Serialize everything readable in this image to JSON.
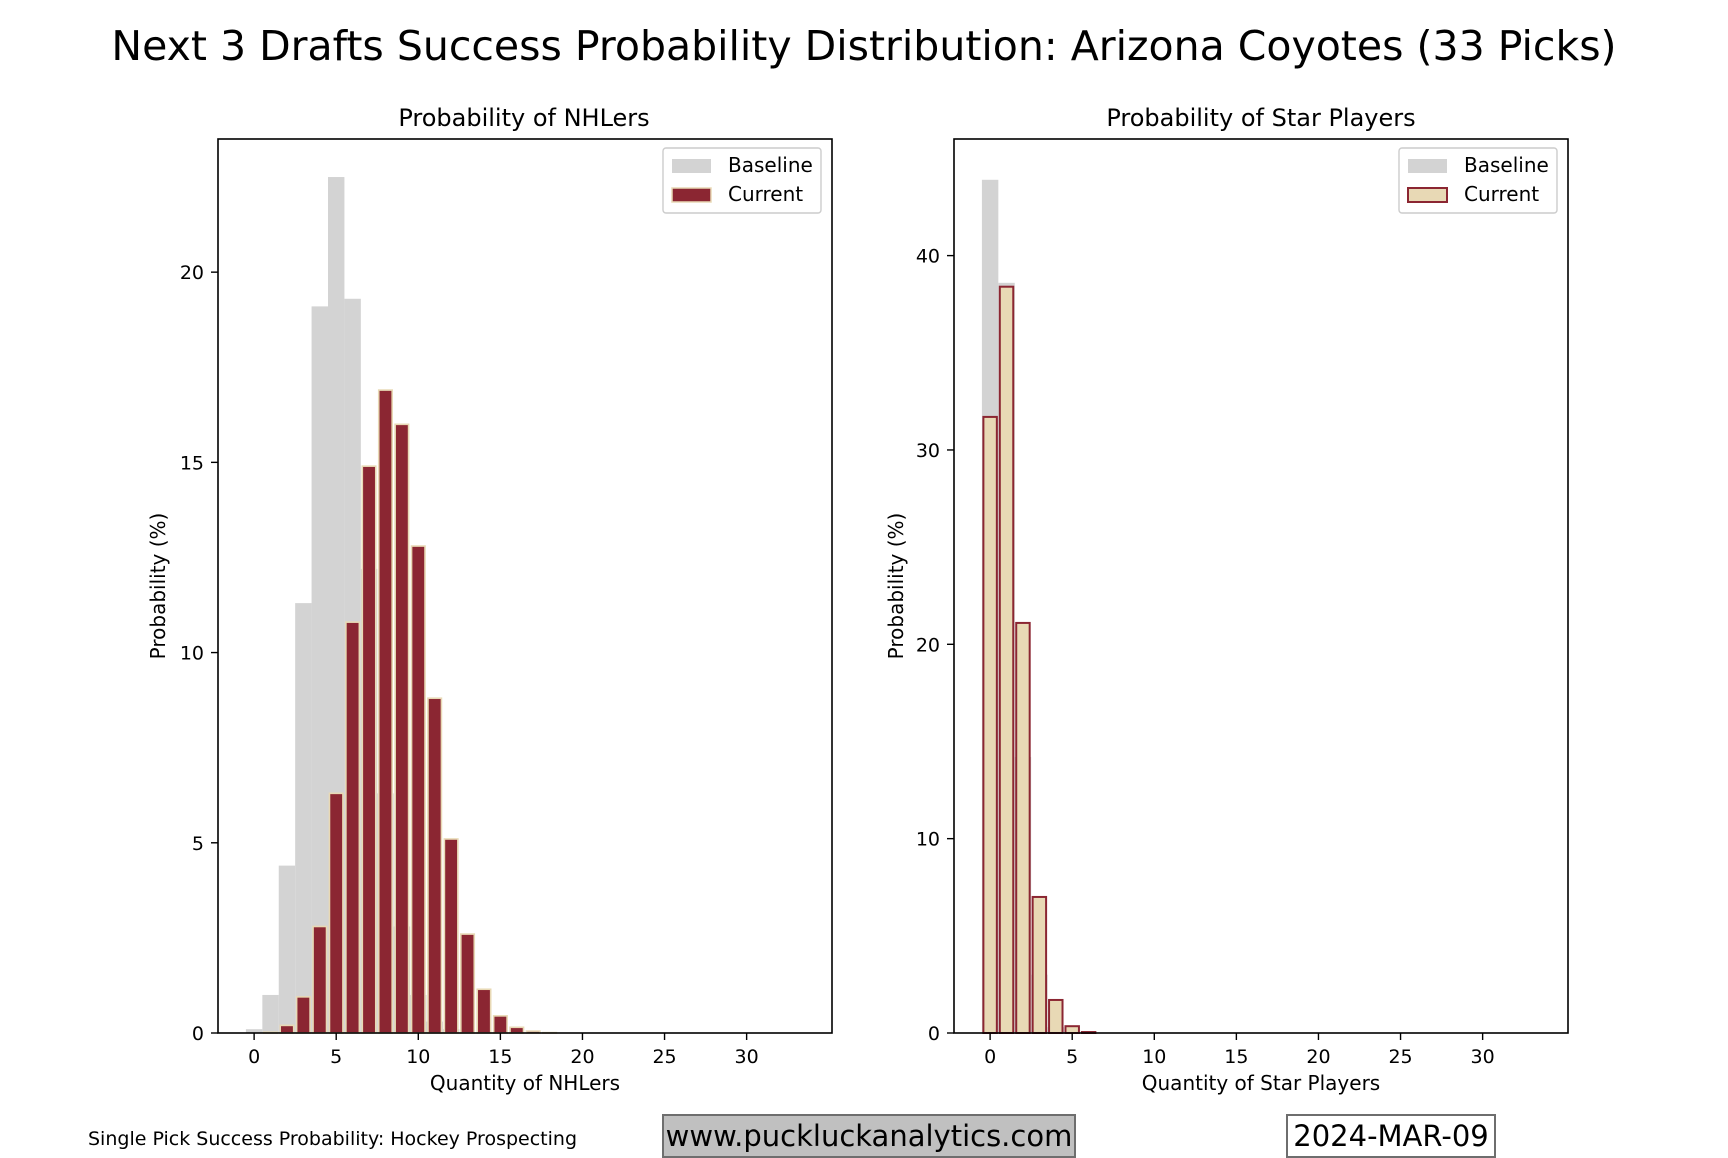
{
  "title": "Next 3 Drafts Success Probability Distribution: Arizona Coyotes (33 Picks)",
  "footer": {
    "source": "Single Pick Success Probability: Hockey Prospecting",
    "website": "www.puckluckanalytics.com",
    "date": "2024-MAR-09"
  },
  "colors": {
    "baseline": "#d3d3d3",
    "current_dark": "#8b2632",
    "current_light": "#e8d9b5"
  },
  "chart_data": [
    {
      "type": "bar",
      "title": "Probability of NHLers",
      "xlabel": "Quantity of NHLers",
      "ylabel": "Probability (%)",
      "xlim": [
        -2.2,
        35.2
      ],
      "ylim": [
        0,
        23.5
      ],
      "xticks": [
        0,
        5,
        10,
        15,
        20,
        25,
        30
      ],
      "yticks": [
        0,
        5,
        10,
        15,
        20
      ],
      "legend_position": "top-right",
      "x": [
        0,
        1,
        2,
        3,
        4,
        5,
        6,
        7,
        8,
        9,
        10,
        11,
        12,
        13,
        14,
        15,
        16,
        17,
        18
      ],
      "series": [
        {
          "name": "Baseline",
          "style": "filled-gray",
          "values": [
            0.1,
            1.0,
            4.4,
            11.3,
            19.1,
            22.5,
            19.3,
            12.2,
            6.3,
            2.8,
            1.0,
            0.3,
            0.1,
            0,
            0,
            0,
            0,
            0,
            0
          ]
        },
        {
          "name": "Current",
          "style": "dark-fill-light-edge",
          "values": [
            0,
            0.02,
            0.2,
            0.95,
            2.8,
            6.3,
            10.8,
            14.9,
            16.9,
            16.0,
            12.8,
            8.8,
            5.1,
            2.6,
            1.15,
            0.45,
            0.15,
            0.05,
            0.01
          ]
        }
      ]
    },
    {
      "type": "bar",
      "title": "Probability of Star Players",
      "xlabel": "Quantity of Star Players",
      "ylabel": "Probability (%)",
      "xlim": [
        -2.2,
        35.2
      ],
      "ylim": [
        0,
        46
      ],
      "xticks": [
        0,
        5,
        10,
        15,
        20,
        25,
        30
      ],
      "yticks": [
        0,
        10,
        20,
        30,
        40
      ],
      "legend_position": "top-right",
      "x": [
        0,
        1,
        2,
        3,
        4,
        5,
        6
      ],
      "series": [
        {
          "name": "Baseline",
          "style": "filled-gray",
          "values": [
            43.9,
            38.6,
            14.2,
            3.0,
            0.3,
            0.05,
            0
          ]
        },
        {
          "name": "Current",
          "style": "light-fill-dark-edge",
          "values": [
            31.7,
            38.4,
            21.1,
            7.0,
            1.7,
            0.35,
            0.05
          ]
        }
      ]
    }
  ]
}
